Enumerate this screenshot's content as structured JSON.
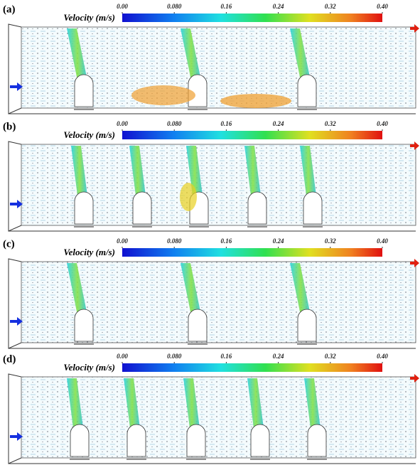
{
  "panels": [
    {
      "label": "(a)",
      "colorbar": {
        "title": "Velocity (m/s)",
        "ticks": [
          {
            "value": 0,
            "label": "0.00"
          },
          {
            "value": 0.08,
            "label": "0.080"
          },
          {
            "value": 0.16,
            "label": "0.16"
          },
          {
            "value": 0.24,
            "label": "0.24"
          },
          {
            "value": 0.32,
            "label": "0.32"
          },
          {
            "value": 0.4,
            "label": "0.40"
          }
        ]
      }
    },
    {
      "label": "(b)",
      "colorbar": {
        "title": "Velocity (m/s)",
        "ticks": [
          {
            "value": 0,
            "label": "0.00"
          },
          {
            "value": 0.08,
            "label": "0.080"
          },
          {
            "value": 0.16,
            "label": "0.16"
          },
          {
            "value": 0.24,
            "label": "0.24"
          },
          {
            "value": 0.32,
            "label": "0.32"
          },
          {
            "value": 0.4,
            "label": "0.40"
          }
        ]
      }
    },
    {
      "label": "(c)",
      "colorbar": {
        "title": "Velocity (m/s)",
        "ticks": [
          {
            "value": 0,
            "label": "0.00"
          },
          {
            "value": 0.08,
            "label": "0.080"
          },
          {
            "value": 0.16,
            "label": "0.16"
          },
          {
            "value": 0.24,
            "label": "0.24"
          },
          {
            "value": 0.32,
            "label": "0.32"
          },
          {
            "value": 0.4,
            "label": "0.40"
          }
        ]
      }
    },
    {
      "label": "(d)",
      "colorbar": {
        "title": "Velocity (m/s)",
        "ticks": [
          {
            "value": 0,
            "label": "0.00"
          },
          {
            "value": 0.08,
            "label": "0.080"
          },
          {
            "value": 0.16,
            "label": "0.16"
          },
          {
            "value": 0.24,
            "label": "0.24"
          },
          {
            "value": 0.32,
            "label": "0.32"
          },
          {
            "value": 0.4,
            "label": "0.40"
          }
        ]
      }
    }
  ]
}
